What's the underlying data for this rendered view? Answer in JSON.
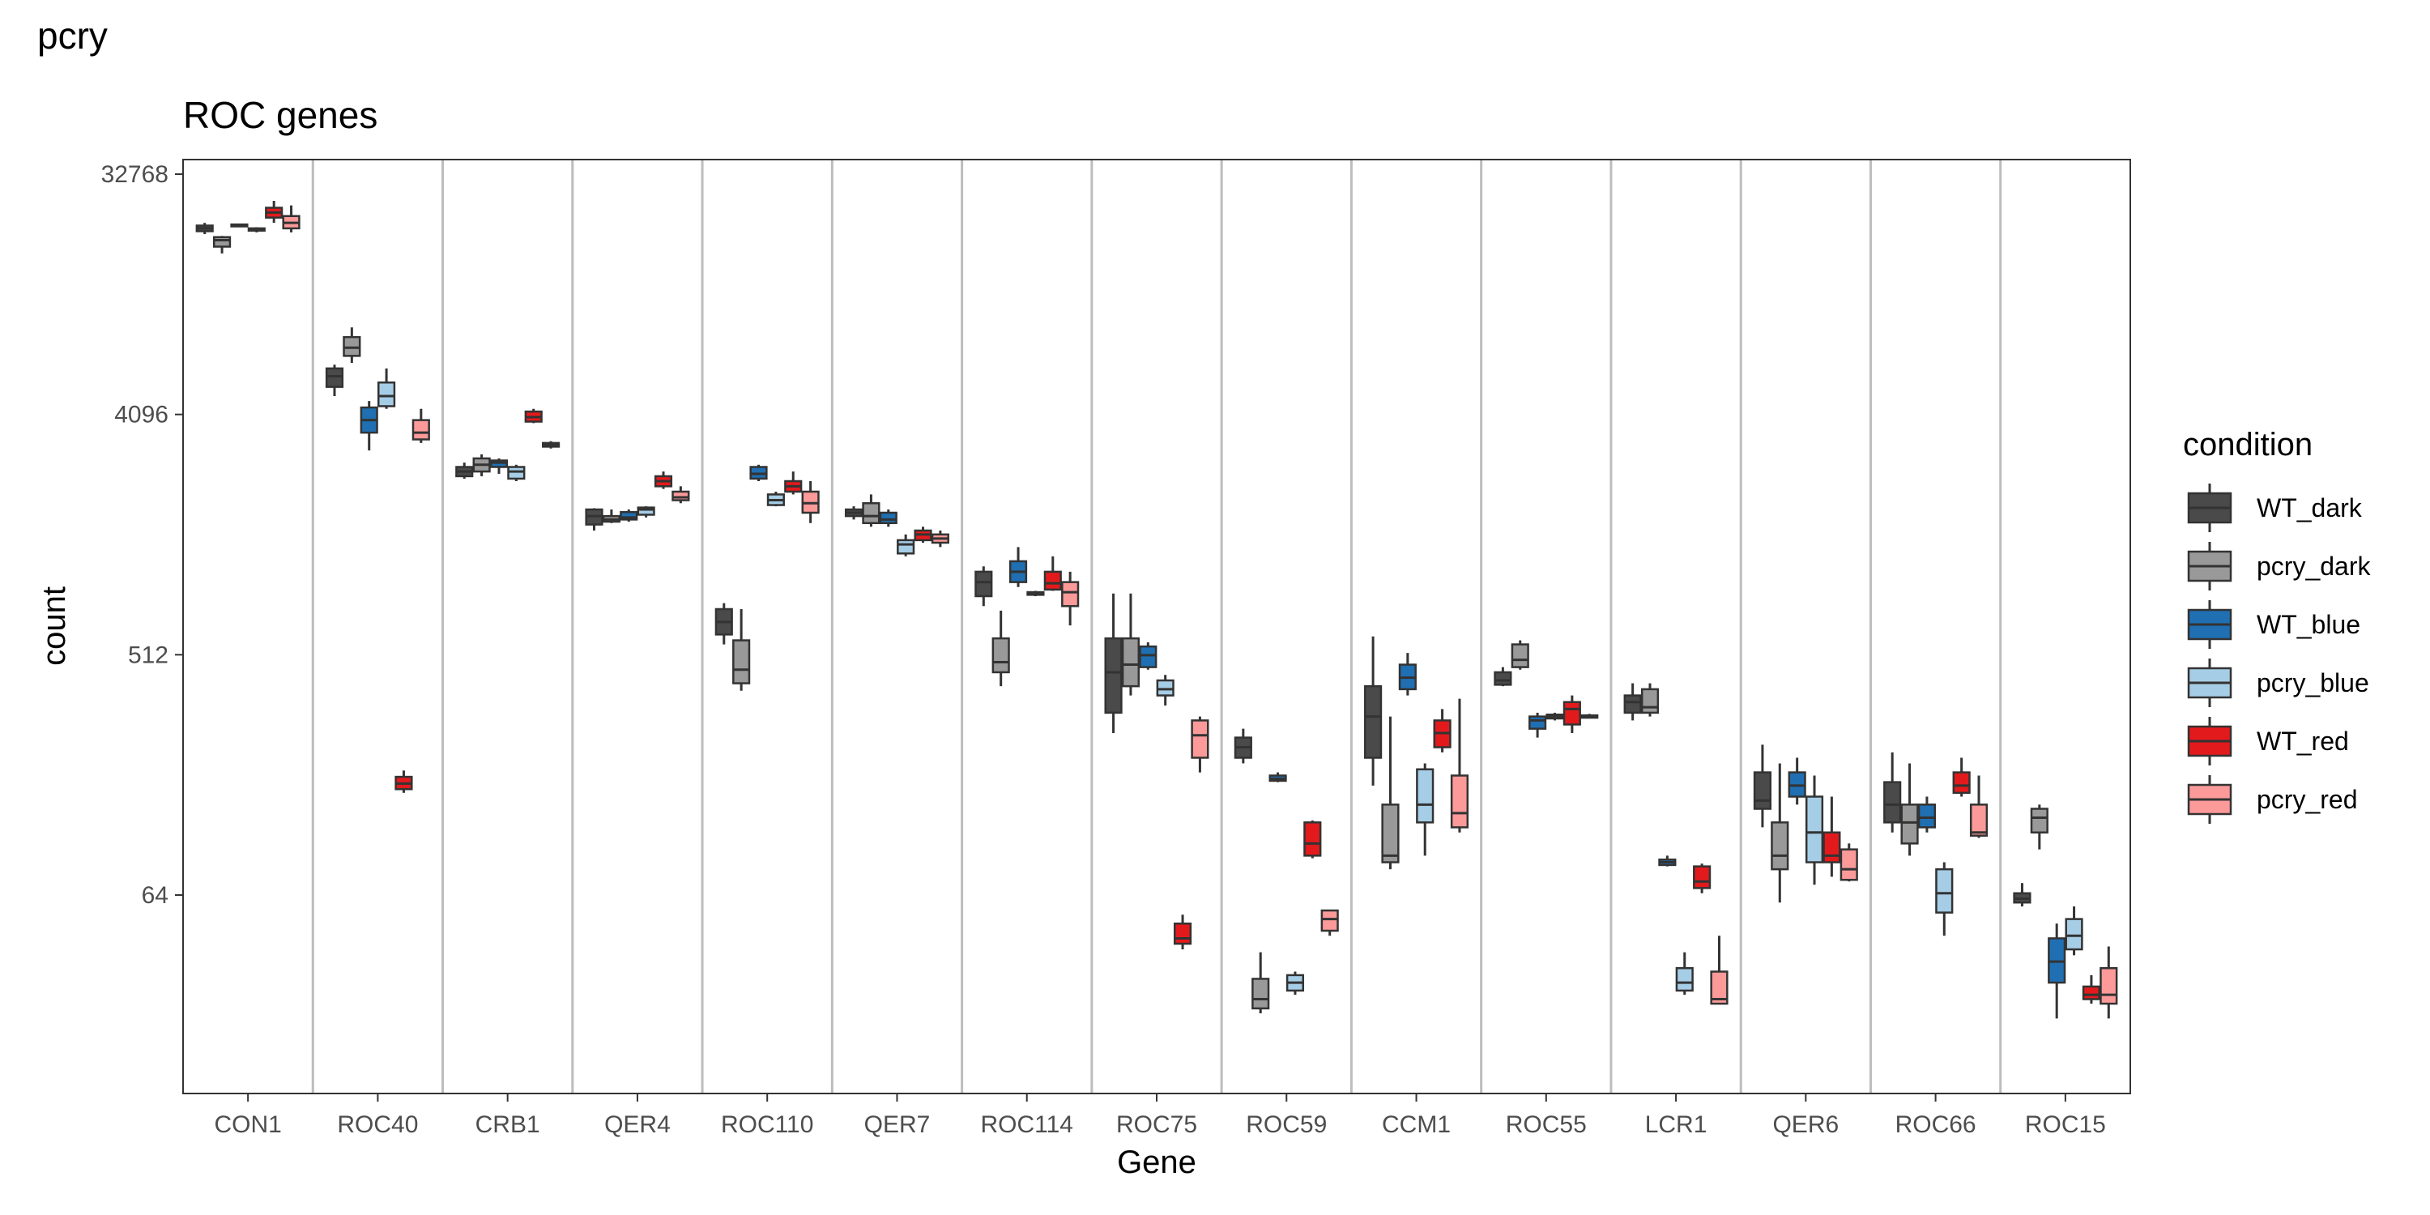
{
  "page_label": "pcry",
  "chart_data": {
    "type": "boxplot",
    "title": "ROC genes",
    "xlabel": "Gene",
    "ylabel": "count",
    "y_scale": "log2",
    "y_ticks": [
      64,
      512,
      4096,
      32768
    ],
    "y_tick_labels": [
      "64",
      "512",
      "4096",
      "32768"
    ],
    "ylim": [
      13,
      40000
    ],
    "grid": "vertical separators between genes",
    "legend": {
      "title": "condition",
      "placement": "right"
    },
    "categories": [
      "CON1",
      "ROC40",
      "CRB1",
      "QER4",
      "ROC110",
      "QER7",
      "ROC114",
      "ROC75",
      "ROC59",
      "CCM1",
      "ROC55",
      "LCR1",
      "QER6",
      "ROC66",
      "ROC15"
    ],
    "series": [
      {
        "name": "WT_dark",
        "color": "#4a4a4a",
        "boxes": [
          [
            19500,
            20000,
            20500,
            21000,
            21500
          ],
          [
            4800,
            5200,
            5700,
            6100,
            6300
          ],
          [
            2350,
            2400,
            2500,
            2600,
            2700
          ],
          [
            1500,
            1580,
            1700,
            1800,
            1820
          ],
          [
            560,
            610,
            680,
            760,
            800
          ],
          [
            1650,
            1700,
            1750,
            1800,
            1850
          ],
          [
            780,
            850,
            960,
            1050,
            1100
          ],
          [
            260,
            310,
            440,
            590,
            870
          ],
          [
            200,
            210,
            230,
            250,
            270
          ],
          [
            165,
            210,
            300,
            390,
            600
          ],
          [
            390,
            395,
            410,
            440,
            460
          ],
          [
            290,
            310,
            340,
            360,
            400
          ],
          [
            115,
            135,
            145,
            185,
            235
          ],
          [
            110,
            120,
            140,
            170,
            220
          ],
          [
            58,
            60,
            62,
            65,
            71
          ]
        ]
      },
      {
        "name": "pcry_dark",
        "color": "#999999",
        "boxes": [
          [
            16500,
            17500,
            18500,
            19000,
            19200
          ],
          [
            6400,
            6800,
            7300,
            8000,
            8700
          ],
          [
            2400,
            2500,
            2650,
            2800,
            2900
          ],
          [
            1600,
            1620,
            1650,
            1700,
            1800
          ],
          [
            375,
            400,
            450,
            580,
            760
          ],
          [
            1550,
            1600,
            1700,
            1900,
            2050
          ],
          [
            390,
            440,
            480,
            590,
            750
          ],
          [
            360,
            390,
            470,
            590,
            870
          ],
          [
            23,
            24,
            26,
            31,
            39
          ],
          [
            80,
            85,
            90,
            140,
            300
          ],
          [
            450,
            460,
            490,
            560,
            580
          ],
          [
            300,
            310,
            325,
            380,
            400
          ],
          [
            60,
            80,
            90,
            120,
            200
          ],
          [
            90,
            100,
            120,
            140,
            200
          ],
          [
            95,
            110,
            125,
            135,
            140
          ]
        ]
      },
      {
        "name": "WT_blue",
        "color": "#1f6fb2",
        "boxes": [
          [
            20700,
            20850,
            21000,
            21200,
            21300
          ],
          [
            3000,
            3500,
            3900,
            4350,
            4600
          ],
          [
            2450,
            2600,
            2700,
            2750,
            2800
          ],
          [
            1620,
            1650,
            1680,
            1760,
            1800
          ],
          [
            2300,
            2350,
            2450,
            2600,
            2650
          ],
          [
            1550,
            1600,
            1650,
            1750,
            1800
          ],
          [
            920,
            960,
            1050,
            1150,
            1300
          ],
          [
            450,
            460,
            510,
            550,
            570
          ],
          [
            170,
            172,
            175,
            180,
            185
          ],
          [
            360,
            380,
            420,
            470,
            520
          ],
          [
            250,
            270,
            290,
            300,
            310
          ],
          [
            82,
            83,
            85,
            87,
            90
          ],
          [
            140,
            150,
            165,
            185,
            210
          ],
          [
            110,
            115,
            125,
            140,
            150
          ],
          [
            22,
            30,
            36,
            44,
            50
          ]
        ]
      },
      {
        "name": "pcry_blue",
        "color": "#a6cde6",
        "boxes": [
          [
            19800,
            20100,
            20300,
            20500,
            20700
          ],
          [
            4300,
            4400,
            4800,
            5400,
            6100
          ],
          [
            2300,
            2350,
            2500,
            2600,
            2650
          ],
          [
            1680,
            1720,
            1800,
            1830,
            1850
          ],
          [
            1850,
            1870,
            1950,
            2050,
            2100
          ],
          [
            1200,
            1230,
            1330,
            1380,
            1450
          ],
          [
            850,
            860,
            870,
            880,
            890
          ],
          [
            330,
            360,
            380,
            410,
            430
          ],
          [
            27,
            28,
            30,
            32,
            33
          ],
          [
            90,
            120,
            140,
            190,
            200
          ],
          [
            290,
            295,
            300,
            305,
            310
          ],
          [
            27,
            28,
            30,
            34,
            39
          ],
          [
            70,
            85,
            110,
            150,
            180
          ],
          [
            45,
            55,
            65,
            80,
            85
          ],
          [
            38,
            40,
            45,
            52,
            58
          ]
        ]
      },
      {
        "name": "WT_red",
        "color": "#e31a1c",
        "boxes": [
          [
            21500,
            22500,
            23500,
            24500,
            26000
          ],
          [
            155,
            160,
            168,
            178,
            188
          ],
          [
            3800,
            3850,
            4000,
            4200,
            4300
          ],
          [
            2150,
            2200,
            2300,
            2400,
            2500
          ],
          [
            2050,
            2100,
            2200,
            2300,
            2500
          ],
          [
            1350,
            1380,
            1450,
            1500,
            1550
          ],
          [
            890,
            900,
            950,
            1050,
            1200
          ],
          [
            40,
            42,
            44,
            50,
            54
          ],
          [
            88,
            90,
            100,
            120,
            122
          ],
          [
            220,
            230,
            260,
            290,
            320
          ],
          [
            260,
            280,
            320,
            340,
            360
          ],
          [
            65,
            68,
            72,
            82,
            84
          ],
          [
            75,
            85,
            90,
            110,
            150
          ],
          [
            150,
            155,
            165,
            185,
            210
          ],
          [
            25,
            26,
            27,
            29,
            32
          ]
        ]
      },
      {
        "name": "pcry_red",
        "color": "#fb9a99",
        "boxes": [
          [
            19800,
            20500,
            21500,
            22800,
            25000
          ],
          [
            3200,
            3300,
            3500,
            3900,
            4300
          ],
          [
            3050,
            3100,
            3150,
            3200,
            3250
          ],
          [
            1900,
            1950,
            2000,
            2100,
            2200
          ],
          [
            1600,
            1750,
            1900,
            2100,
            2300
          ],
          [
            1300,
            1350,
            1400,
            1450,
            1500
          ],
          [
            660,
            780,
            880,
            960,
            1050
          ],
          [
            185,
            210,
            255,
            290,
            300
          ],
          [
            45,
            47,
            52,
            56,
            56
          ],
          [
            110,
            115,
            130,
            180,
            350
          ],
          [
            295,
            297,
            300,
            303,
            307
          ],
          [
            25,
            25,
            26,
            33,
            45
          ],
          [
            72,
            73,
            80,
            95,
            100
          ],
          [
            105,
            107,
            110,
            140,
            180
          ],
          [
            22,
            25,
            27,
            34,
            41
          ]
        ]
      }
    ]
  }
}
